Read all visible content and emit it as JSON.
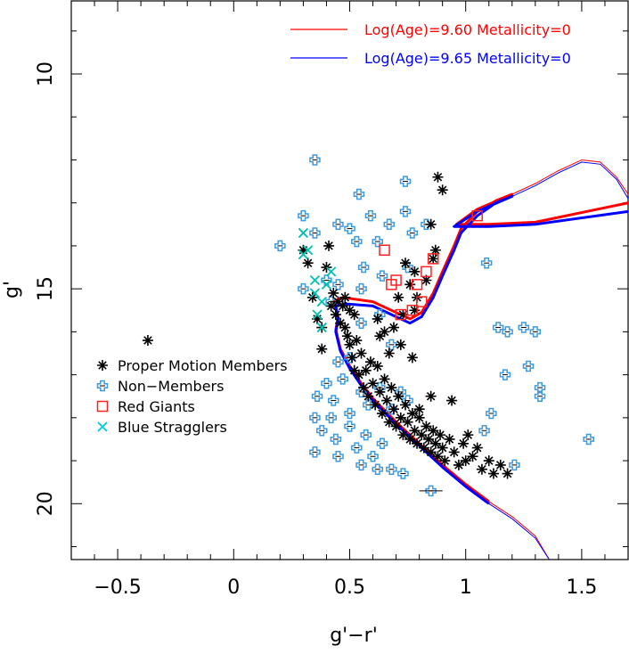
{
  "chart_data": {
    "type": "scatter",
    "xlabel": "g'−r'",
    "ylabel": "g'",
    "xlim": [
      -0.7,
      1.7
    ],
    "ylim": [
      21.3,
      8.3
    ],
    "y_inverted": true,
    "x_ticks": [
      -0.5,
      0,
      0.5,
      1,
      1.5
    ],
    "x_tick_labels": [
      "−0.5",
      "0",
      "0.5",
      "1",
      "1.5"
    ],
    "y_ticks": [
      10,
      15,
      20
    ],
    "y_tick_labels": [
      "10",
      "15",
      "20"
    ],
    "isochrones": [
      {
        "name": "Log(Age)=9.60  Metallicity=0",
        "color": "#ff0000",
        "points": [
          [
            1.1,
            19.95
          ],
          [
            1.0,
            19.55
          ],
          [
            0.9,
            19.1
          ],
          [
            0.8,
            18.6
          ],
          [
            0.7,
            18.1
          ],
          [
            0.6,
            17.55
          ],
          [
            0.55,
            17.2
          ],
          [
            0.5,
            16.8
          ],
          [
            0.46,
            16.4
          ],
          [
            0.44,
            15.95
          ],
          [
            0.45,
            15.65
          ],
          [
            0.43,
            15.3
          ],
          [
            0.47,
            15.2
          ],
          [
            0.6,
            15.3
          ],
          [
            0.7,
            15.55
          ],
          [
            0.76,
            15.7
          ],
          [
            0.81,
            15.55
          ],
          [
            0.86,
            15.1
          ],
          [
            0.9,
            14.6
          ],
          [
            0.95,
            14.0
          ],
          [
            0.98,
            13.6
          ],
          [
            1.05,
            13.2
          ],
          [
            1.13,
            12.95
          ],
          [
            1.2,
            12.8
          ],
          [
            1.05,
            13.15
          ],
          [
            0.96,
            13.5
          ],
          [
            1.1,
            13.5
          ],
          [
            1.3,
            13.45
          ],
          [
            1.7,
            13.0
          ]
        ]
      },
      {
        "name": "Log(Age)=9.65  Metallicity=0",
        "color": "#0000ff",
        "points": [
          [
            1.1,
            20.0
          ],
          [
            1.0,
            19.6
          ],
          [
            0.9,
            19.15
          ],
          [
            0.8,
            18.65
          ],
          [
            0.7,
            18.15
          ],
          [
            0.6,
            17.6
          ],
          [
            0.55,
            17.25
          ],
          [
            0.5,
            16.85
          ],
          [
            0.46,
            16.45
          ],
          [
            0.44,
            16.0
          ],
          [
            0.45,
            15.7
          ],
          [
            0.44,
            15.4
          ],
          [
            0.48,
            15.35
          ],
          [
            0.6,
            15.4
          ],
          [
            0.7,
            15.65
          ],
          [
            0.76,
            15.8
          ],
          [
            0.81,
            15.65
          ],
          [
            0.86,
            15.2
          ],
          [
            0.9,
            14.7
          ],
          [
            0.95,
            14.1
          ],
          [
            0.98,
            13.7
          ],
          [
            1.05,
            13.3
          ],
          [
            1.13,
            13.0
          ],
          [
            1.2,
            12.85
          ],
          [
            1.05,
            13.2
          ],
          [
            0.95,
            13.55
          ],
          [
            1.1,
            13.55
          ],
          [
            1.3,
            13.5
          ],
          [
            1.7,
            13.2
          ]
        ]
      }
    ],
    "isochrone_tails": [
      {
        "name": "Log(Age)=9.60  Metallicity=0",
        "color": "#ff0000",
        "points": [
          [
            1.1,
            19.95
          ],
          [
            1.2,
            20.3
          ],
          [
            1.3,
            20.75
          ],
          [
            1.36,
            21.3
          ]
        ]
      },
      {
        "name": "Log(Age)=9.65  Metallicity=0",
        "color": "#0000ff",
        "points": [
          [
            1.1,
            20.0
          ],
          [
            1.2,
            20.35
          ],
          [
            1.3,
            20.8
          ],
          [
            1.36,
            21.3
          ]
        ]
      }
    ],
    "giant_branch_loop": [
      {
        "name": "Log(Age)=9.60  Metallicity=0",
        "color": "#ff0000",
        "points": [
          [
            1.2,
            12.8
          ],
          [
            1.3,
            12.55
          ],
          [
            1.4,
            12.25
          ],
          [
            1.5,
            12.0
          ],
          [
            1.58,
            12.05
          ],
          [
            1.65,
            12.4
          ],
          [
            1.7,
            12.8
          ]
        ]
      },
      {
        "name": "Log(Age)=9.65  Metallicity=0",
        "color": "#0000ff",
        "points": [
          [
            1.2,
            12.85
          ],
          [
            1.3,
            12.6
          ],
          [
            1.4,
            12.3
          ],
          [
            1.5,
            12.05
          ],
          [
            1.58,
            12.1
          ],
          [
            1.65,
            12.45
          ],
          [
            1.7,
            12.9
          ]
        ]
      }
    ],
    "series": [
      {
        "name": "Proper Motion Members",
        "marker": "asterisk",
        "color": "#000000",
        "points": [
          [
            -0.37,
            16.2
          ],
          [
            0.3,
            14.1
          ],
          [
            0.32,
            14.4
          ],
          [
            0.34,
            15.2
          ],
          [
            0.36,
            15.7
          ],
          [
            0.38,
            15.9
          ],
          [
            0.38,
            16.4
          ],
          [
            0.4,
            14.5
          ],
          [
            0.41,
            14.0
          ],
          [
            0.42,
            15.4
          ],
          [
            0.43,
            15.1
          ],
          [
            0.44,
            15.6
          ],
          [
            0.45,
            15.3
          ],
          [
            0.46,
            15.8
          ],
          [
            0.47,
            15.4
          ],
          [
            0.48,
            15.2
          ],
          [
            0.48,
            15.9
          ],
          [
            0.49,
            16.1
          ],
          [
            0.5,
            15.5
          ],
          [
            0.5,
            16.3
          ],
          [
            0.51,
            16.6
          ],
          [
            0.52,
            15.6
          ],
          [
            0.52,
            16.9
          ],
          [
            0.53,
            16.2
          ],
          [
            0.54,
            17.0
          ],
          [
            0.55,
            16.5
          ],
          [
            0.56,
            17.3
          ],
          [
            0.57,
            16.9
          ],
          [
            0.58,
            17.5
          ],
          [
            0.59,
            16.7
          ],
          [
            0.6,
            17.2
          ],
          [
            0.61,
            17.7
          ],
          [
            0.62,
            16.8
          ],
          [
            0.63,
            17.4
          ],
          [
            0.64,
            17.9
          ],
          [
            0.65,
            17.1
          ],
          [
            0.66,
            17.6
          ],
          [
            0.67,
            18.1
          ],
          [
            0.68,
            17.3
          ],
          [
            0.69,
            17.8
          ],
          [
            0.7,
            18.2
          ],
          [
            0.71,
            17.5
          ],
          [
            0.72,
            18.0
          ],
          [
            0.73,
            18.4
          ],
          [
            0.74,
            17.7
          ],
          [
            0.75,
            18.1
          ],
          [
            0.76,
            18.5
          ],
          [
            0.77,
            17.9
          ],
          [
            0.78,
            18.3
          ],
          [
            0.79,
            18.6
          ],
          [
            0.8,
            18.0
          ],
          [
            0.81,
            18.4
          ],
          [
            0.82,
            18.7
          ],
          [
            0.83,
            18.2
          ],
          [
            0.84,
            18.5
          ],
          [
            0.85,
            18.8
          ],
          [
            0.86,
            18.3
          ],
          [
            0.87,
            18.6
          ],
          [
            0.88,
            18.9
          ],
          [
            0.89,
            18.4
          ],
          [
            0.9,
            18.7
          ],
          [
            0.91,
            19.0
          ],
          [
            0.93,
            18.5
          ],
          [
            0.95,
            18.8
          ],
          [
            0.97,
            19.1
          ],
          [
            0.99,
            18.6
          ],
          [
            1.0,
            19.0
          ],
          [
            1.01,
            18.4
          ],
          [
            1.03,
            18.9
          ],
          [
            1.05,
            18.7
          ],
          [
            1.07,
            19.2
          ],
          [
            1.1,
            19.0
          ],
          [
            1.12,
            19.3
          ],
          [
            1.15,
            19.1
          ],
          [
            1.18,
            19.3
          ],
          [
            0.94,
            17.6
          ],
          [
            0.8,
            17.8
          ],
          [
            0.85,
            17.5
          ],
          [
            0.63,
            16.1
          ],
          [
            0.67,
            16.5
          ],
          [
            0.72,
            16.3
          ],
          [
            0.77,
            16.6
          ],
          [
            0.62,
            15.7
          ],
          [
            0.69,
            15.9
          ],
          [
            0.73,
            15.6
          ],
          [
            0.78,
            15.5
          ],
          [
            0.65,
            16.0
          ],
          [
            0.74,
            14.4
          ],
          [
            0.76,
            14.9
          ],
          [
            0.78,
            14.6
          ],
          [
            0.83,
            14.8
          ],
          [
            0.86,
            14.3
          ],
          [
            0.88,
            12.4
          ],
          [
            0.9,
            12.7
          ],
          [
            0.85,
            13.5
          ],
          [
            0.87,
            14.1
          ],
          [
            0.71,
            15.2
          ],
          [
            0.79,
            15.2
          ]
        ]
      },
      {
        "name": "Non-Members",
        "marker": "plus-open",
        "color": "#3d9ae0",
        "points": [
          [
            0.35,
            12.0
          ],
          [
            0.54,
            12.8
          ],
          [
            0.74,
            12.5
          ],
          [
            0.59,
            13.3
          ],
          [
            0.3,
            13.3
          ],
          [
            0.2,
            14.0
          ],
          [
            0.35,
            13.7
          ],
          [
            0.45,
            13.5
          ],
          [
            0.5,
            13.6
          ],
          [
            0.53,
            13.9
          ],
          [
            0.62,
            13.9
          ],
          [
            0.67,
            13.5
          ],
          [
            0.74,
            13.2
          ],
          [
            0.77,
            13.7
          ],
          [
            0.83,
            13.5
          ],
          [
            0.4,
            14.8
          ],
          [
            0.3,
            15.0
          ],
          [
            0.42,
            15.3
          ],
          [
            0.45,
            14.9
          ],
          [
            0.56,
            14.5
          ],
          [
            0.64,
            14.7
          ],
          [
            0.75,
            14.5
          ],
          [
            1.09,
            14.4
          ],
          [
            0.55,
            15.0
          ],
          [
            0.63,
            15.6
          ],
          [
            0.55,
            15.8
          ],
          [
            0.68,
            16.3
          ],
          [
            0.45,
            16.7
          ],
          [
            0.5,
            16.6
          ],
          [
            0.36,
            17.5
          ],
          [
            0.4,
            17.2
          ],
          [
            0.43,
            17.6
          ],
          [
            0.47,
            17.1
          ],
          [
            0.5,
            17.9
          ],
          [
            0.55,
            17.4
          ],
          [
            0.58,
            17.7
          ],
          [
            0.63,
            17.3
          ],
          [
            0.68,
            17.8
          ],
          [
            0.72,
            17.4
          ],
          [
            0.75,
            17.6
          ],
          [
            0.35,
            18.0
          ],
          [
            0.38,
            18.3
          ],
          [
            0.42,
            18.0
          ],
          [
            0.44,
            18.5
          ],
          [
            0.5,
            18.2
          ],
          [
            0.53,
            18.7
          ],
          [
            0.57,
            18.4
          ],
          [
            0.6,
            18.9
          ],
          [
            0.64,
            18.6
          ],
          [
            0.68,
            19.2
          ],
          [
            0.35,
            18.8
          ],
          [
            0.45,
            18.9
          ],
          [
            0.55,
            19.1
          ],
          [
            0.62,
            19.2
          ],
          [
            0.73,
            19.3
          ],
          [
            1.08,
            18.3
          ],
          [
            1.11,
            17.9
          ],
          [
            1.14,
            15.9
          ],
          [
            1.18,
            16.0
          ],
          [
            1.25,
            15.9
          ],
          [
            1.27,
            16.8
          ],
          [
            1.32,
            17.3
          ],
          [
            1.32,
            17.5
          ],
          [
            1.3,
            16.0
          ],
          [
            1.21,
            19.1
          ],
          [
            1.53,
            18.5
          ],
          [
            0.85,
            19.7
          ],
          [
            1.17,
            17.0
          ]
        ]
      },
      {
        "name": "Red Giants",
        "marker": "square-open",
        "color": "#ff2020",
        "points": [
          [
            0.65,
            14.1
          ],
          [
            0.68,
            14.9
          ],
          [
            0.72,
            15.6
          ],
          [
            0.77,
            15.5
          ],
          [
            0.79,
            14.9
          ],
          [
            0.81,
            15.3
          ],
          [
            0.83,
            14.6
          ],
          [
            0.86,
            14.3
          ],
          [
            1.05,
            13.3
          ],
          [
            0.7,
            14.8
          ]
        ]
      },
      {
        "name": "Blue Stragglers",
        "marker": "cross",
        "color": "#00c0b0",
        "points": [
          [
            0.3,
            13.7
          ],
          [
            0.3,
            14.2
          ],
          [
            0.32,
            14.1
          ],
          [
            0.35,
            15.1
          ],
          [
            0.36,
            15.6
          ],
          [
            0.38,
            15.9
          ],
          [
            0.38,
            15.3
          ],
          [
            0.4,
            14.9
          ],
          [
            0.42,
            14.6
          ],
          [
            0.35,
            14.8
          ]
        ]
      }
    ],
    "legend": {
      "placement": "left",
      "entries": [
        {
          "label": "Proper Motion Members",
          "marker": "asterisk",
          "color": "#000000"
        },
        {
          "label": "Non−Members",
          "marker": "plus-open",
          "color": "#3d9ae0"
        },
        {
          "label": "Red Giants",
          "marker": "square-open",
          "color": "#ff2020"
        },
        {
          "label": "Blue Stragglers",
          "marker": "cross",
          "color": "#00c8e6"
        }
      ]
    },
    "isochrone_legend": {
      "placement": "top-right",
      "entries": [
        {
          "label": "Log(Age)=9.60  Metallicity=0",
          "color": "#ff0000"
        },
        {
          "label": "Log(Age)=9.65  Metallicity=0",
          "color": "#0000ff"
        }
      ]
    },
    "grid": false
  }
}
